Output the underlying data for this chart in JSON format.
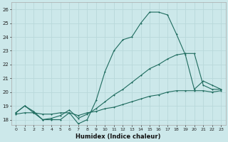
{
  "xlabel": "Humidex (Indice chaleur)",
  "background_color": "#cce8ea",
  "grid_color": "#b8d8da",
  "line_color": "#1e6b5e",
  "xlim_min": -0.5,
  "xlim_max": 23.5,
  "ylim_min": 17.6,
  "ylim_max": 26.5,
  "xticks": [
    0,
    1,
    2,
    3,
    4,
    5,
    6,
    7,
    8,
    9,
    10,
    11,
    12,
    13,
    14,
    15,
    16,
    17,
    18,
    19,
    20,
    21,
    22,
    23
  ],
  "yticks": [
    18,
    19,
    20,
    21,
    22,
    23,
    24,
    25,
    26
  ],
  "line1_x": [
    0,
    1,
    2,
    3,
    4,
    5,
    6,
    7,
    8,
    9,
    10,
    11,
    12,
    13,
    14,
    15,
    16,
    17,
    18,
    19,
    20,
    21,
    22,
    23
  ],
  "line1_y": [
    18.5,
    19.0,
    18.5,
    18.0,
    18.0,
    18.0,
    18.5,
    17.7,
    18.0,
    19.4,
    21.5,
    23.0,
    23.8,
    24.0,
    25.0,
    25.8,
    25.8,
    25.6,
    24.2,
    22.7,
    20.2,
    20.8,
    20.5,
    20.2
  ],
  "line2_x": [
    0,
    1,
    2,
    3,
    4,
    5,
    6,
    7,
    8,
    9,
    10,
    11,
    12,
    13,
    14,
    15,
    16,
    17,
    18,
    19,
    20,
    21,
    22,
    23
  ],
  "line2_y": [
    18.5,
    19.0,
    18.6,
    18.0,
    18.1,
    18.3,
    18.7,
    18.1,
    18.4,
    18.8,
    19.3,
    19.8,
    20.2,
    20.7,
    21.2,
    21.7,
    22.0,
    22.4,
    22.7,
    22.8,
    22.8,
    20.5,
    20.2,
    20.2
  ],
  "line3_x": [
    0,
    1,
    2,
    3,
    4,
    5,
    6,
    7,
    8,
    9,
    10,
    11,
    12,
    13,
    14,
    15,
    16,
    17,
    18,
    19,
    20,
    21,
    22,
    23
  ],
  "line3_y": [
    18.4,
    18.5,
    18.5,
    18.4,
    18.4,
    18.5,
    18.5,
    18.3,
    18.5,
    18.6,
    18.8,
    18.9,
    19.1,
    19.3,
    19.5,
    19.7,
    19.8,
    20.0,
    20.1,
    20.1,
    20.1,
    20.1,
    20.0,
    20.1
  ]
}
